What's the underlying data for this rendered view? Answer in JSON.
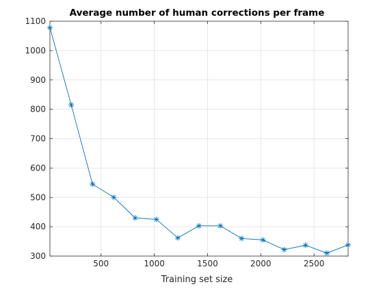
{
  "chart_data": {
    "type": "line",
    "title": "Average number of human corrections per frame",
    "xlabel": "Training set size",
    "ylabel": "",
    "xlim": [
      20,
      2820
    ],
    "ylim": [
      300,
      1100
    ],
    "xticks": [
      500,
      1000,
      1500,
      2000,
      2500
    ],
    "yticks": [
      300,
      400,
      500,
      600,
      700,
      800,
      900,
      1000,
      1100
    ],
    "grid": true,
    "marker": "asterisk",
    "line_color": "#0072bd",
    "series": [
      {
        "x": [
          20,
          220,
          420,
          620,
          820,
          1020,
          1220,
          1420,
          1620,
          1820,
          2020,
          2220,
          2420,
          2620,
          2820
        ],
        "values": [
          1078,
          815,
          545,
          500,
          430,
          425,
          362,
          403,
          403,
          360,
          355,
          322,
          337,
          310,
          338
        ]
      }
    ]
  }
}
